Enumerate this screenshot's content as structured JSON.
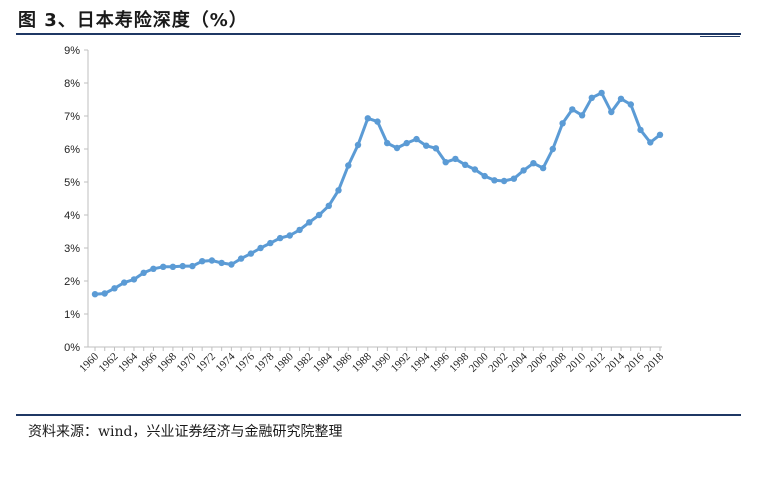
{
  "title": "图 3、日本寿险深度（%）",
  "source": "资料来源：wind，兴业证券经济与金融研究院整理",
  "colors": {
    "series": "#5b9bd5",
    "rule": "#1f3864",
    "axis": "#bfbfbf"
  },
  "chart_data": {
    "type": "line",
    "title": "日本寿险深度（%）",
    "xlabel": "",
    "ylabel": "",
    "ylim": [
      0,
      9
    ],
    "yticks": [
      "0%",
      "1%",
      "2%",
      "3%",
      "4%",
      "5%",
      "6%",
      "7%",
      "8%",
      "9%"
    ],
    "grid": false,
    "legend": "none",
    "x": [
      1960,
      1961,
      1962,
      1963,
      1964,
      1965,
      1966,
      1967,
      1968,
      1969,
      1970,
      1971,
      1972,
      1973,
      1974,
      1975,
      1976,
      1977,
      1978,
      1979,
      1980,
      1981,
      1982,
      1983,
      1984,
      1985,
      1986,
      1987,
      1988,
      1989,
      1990,
      1991,
      1992,
      1993,
      1994,
      1995,
      1996,
      1997,
      1998,
      1999,
      2000,
      2001,
      2002,
      2003,
      2004,
      2005,
      2006,
      2007,
      2008,
      2009,
      2010,
      2011,
      2012,
      2013,
      2014,
      2015,
      2016,
      2017,
      2018
    ],
    "xticklabels": [
      "1960",
      "1962",
      "1964",
      "1966",
      "1968",
      "1970",
      "1972",
      "1974",
      "1976",
      "1978",
      "1980",
      "1982",
      "1984",
      "1986",
      "1988",
      "1990",
      "1992",
      "1994",
      "1996",
      "1998",
      "2000",
      "2002",
      "2004",
      "2006",
      "2008",
      "2010",
      "2012",
      "2014",
      "2016",
      "2018"
    ],
    "series": [
      {
        "values": [
          1.6,
          1.62,
          1.78,
          1.95,
          2.05,
          2.25,
          2.37,
          2.43,
          2.43,
          2.45,
          2.45,
          2.6,
          2.62,
          2.55,
          2.5,
          2.68,
          2.83,
          3.0,
          3.15,
          3.3,
          3.38,
          3.55,
          3.78,
          4.0,
          4.28,
          4.75,
          5.5,
          6.12,
          6.93,
          6.83,
          6.18,
          6.03,
          6.18,
          6.3,
          6.1,
          6.02,
          5.6,
          5.7,
          5.52,
          5.38,
          5.18,
          5.05,
          5.03,
          5.1,
          5.35,
          5.57,
          5.42,
          6.0,
          6.78,
          7.2,
          7.02,
          7.55,
          7.7,
          7.12,
          7.52,
          7.35,
          6.58,
          6.2,
          6.43
        ]
      }
    ]
  }
}
